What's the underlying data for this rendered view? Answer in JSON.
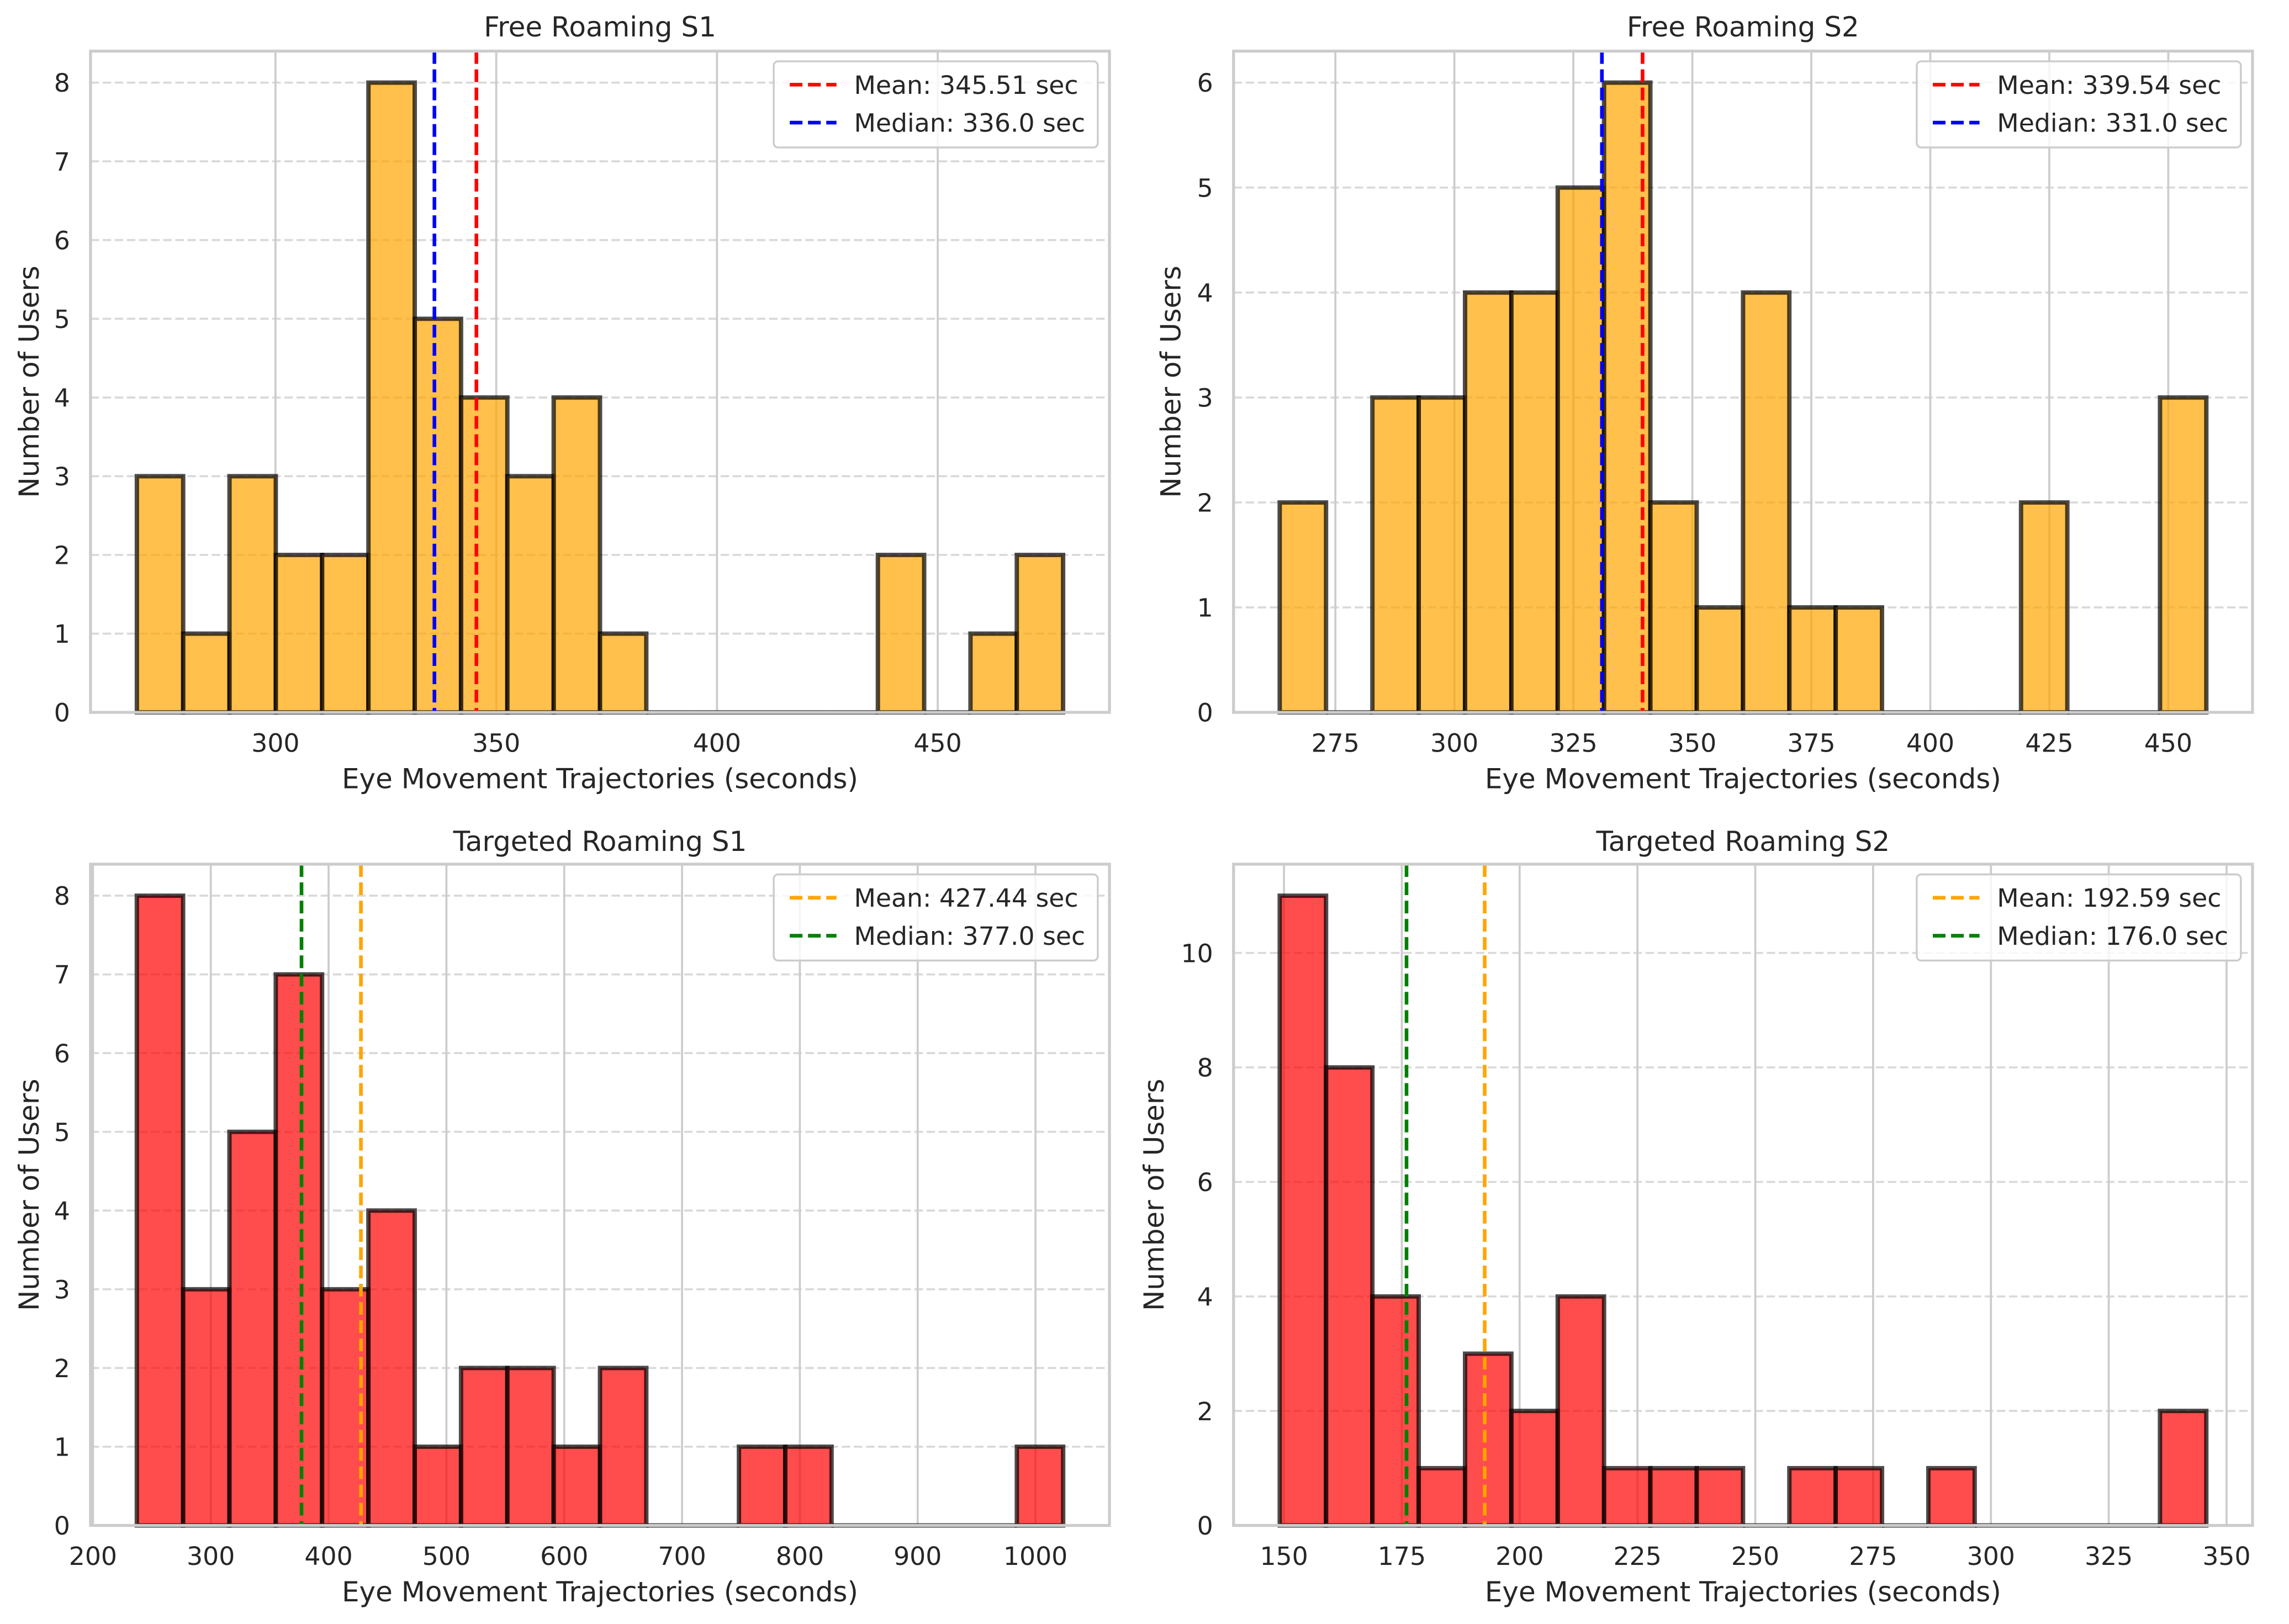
{
  "chart_data": [
    {
      "type": "bar",
      "title": "Free Roaming S1",
      "xlabel": "Eye Movement Trajectories (seconds)",
      "ylabel": "Number of Users",
      "bins": 20,
      "bin_range": [
        268.6,
        478.4
      ],
      "values": [
        3,
        1,
        3,
        2,
        2,
        8,
        5,
        4,
        3,
        4,
        1,
        0,
        0,
        0,
        0,
        0,
        2,
        0,
        1,
        2
      ],
      "xlim": [
        258.1,
        488.9
      ],
      "ylim": [
        0,
        8.4
      ],
      "xticks": [
        300,
        350,
        400,
        450
      ],
      "yticks": [
        0,
        1,
        2,
        3,
        4,
        5,
        6,
        7,
        8
      ],
      "bar_color": "#FFA500",
      "reference_lines": [
        {
          "name": "mean",
          "value": 345.51,
          "label": "Mean: 345.51 sec",
          "color": "#FF0000"
        },
        {
          "name": "median",
          "value": 336.0,
          "label": "Median: 336.0 sec",
          "color": "#0000FF"
        }
      ],
      "legend": "top-right",
      "grid": true
    },
    {
      "type": "bar",
      "title": "Free Roaming S2",
      "xlabel": "Eye Movement Trajectories (seconds)",
      "ylabel": "Number of Users",
      "bins": 20,
      "bin_range": [
        263.3,
        458.0
      ],
      "values": [
        2,
        0,
        3,
        3,
        4,
        4,
        5,
        6,
        2,
        1,
        4,
        1,
        1,
        0,
        0,
        0,
        2,
        0,
        0,
        3
      ],
      "xlim": [
        253.6,
        467.7
      ],
      "ylim": [
        0,
        6.3
      ],
      "xticks": [
        275,
        300,
        325,
        350,
        375,
        400,
        425,
        450
      ],
      "yticks": [
        0,
        1,
        2,
        3,
        4,
        5,
        6
      ],
      "bar_color": "#FFA500",
      "reference_lines": [
        {
          "name": "mean",
          "value": 339.54,
          "label": "Mean: 339.54 sec",
          "color": "#FF0000"
        },
        {
          "name": "median",
          "value": 331.0,
          "label": "Median: 331.0 sec",
          "color": "#0000FF"
        }
      ],
      "legend": "top-right",
      "grid": true
    },
    {
      "type": "bar",
      "title": "Targeted Roaming S1",
      "xlabel": "Eye Movement Trajectories (seconds)",
      "ylabel": "Number of Users",
      "bins": 20,
      "bin_range": [
        237.2,
        1023.5
      ],
      "values": [
        8,
        3,
        5,
        7,
        3,
        4,
        1,
        2,
        2,
        1,
        2,
        0,
        0,
        1,
        1,
        0,
        0,
        0,
        0,
        1
      ],
      "xlim": [
        197.9,
        1062.8
      ],
      "ylim": [
        0,
        8.4
      ],
      "xticks": [
        200,
        300,
        400,
        500,
        600,
        700,
        800,
        900,
        1000
      ],
      "yticks": [
        0,
        1,
        2,
        3,
        4,
        5,
        6,
        7,
        8
      ],
      "bar_color": "#FF0000",
      "reference_lines": [
        {
          "name": "mean",
          "value": 427.44,
          "label": "Mean: 427.44 sec",
          "color": "#FFA500"
        },
        {
          "name": "median",
          "value": 377.0,
          "label": "Median: 377.0 sec",
          "color": "#008000"
        }
      ],
      "legend": "top-right",
      "grid": true
    },
    {
      "type": "bar",
      "title": "Targeted Roaming S2",
      "xlabel": "Eye Movement Trajectories (seconds)",
      "ylabel": "Number of Users",
      "bins": 20,
      "bin_range": [
        149.1,
        345.7
      ],
      "values": [
        11,
        8,
        4,
        1,
        3,
        2,
        4,
        1,
        1,
        1,
        0,
        1,
        1,
        0,
        1,
        0,
        0,
        0,
        0,
        2
      ],
      "xlim": [
        139.3,
        355.5
      ],
      "ylim": [
        0,
        11.55
      ],
      "xticks": [
        150,
        175,
        200,
        225,
        250,
        275,
        300,
        325,
        350
      ],
      "yticks": [
        0,
        2,
        4,
        6,
        8,
        10
      ],
      "bar_color": "#FF0000",
      "reference_lines": [
        {
          "name": "mean",
          "value": 192.59,
          "label": "Mean: 192.59 sec",
          "color": "#FFA500"
        },
        {
          "name": "median",
          "value": 176.0,
          "label": "Median: 176.0 sec",
          "color": "#008000"
        }
      ],
      "legend": "top-right",
      "grid": true
    }
  ]
}
